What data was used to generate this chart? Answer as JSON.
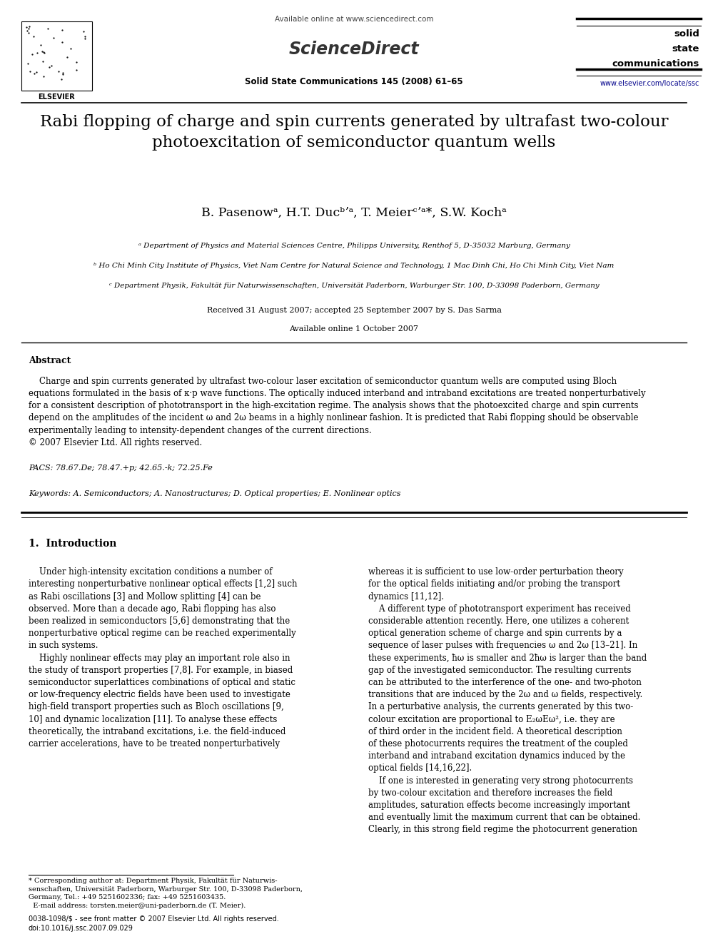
{
  "page_width": 9.92,
  "page_height": 13.23,
  "bg_color": "#ffffff",
  "header_available_online": "Available online at www.sciencedirect.com",
  "header_sciencedirect": "ScienceDirect",
  "header_journal_abbrev": "Solid State Communications 145 (2008) 61–65",
  "header_solid": "solid",
  "header_state": "state",
  "header_communications": "communications",
  "header_url": "www.elsevier.com/locate/ssc",
  "header_elsevier": "ELSEVIER",
  "title": "Rabi flopping of charge and spin currents generated by ultrafast two-colour\nphotoexcitation of semiconductor quantum wells",
  "authors": "B. Pasenowᵃ, H.T. Ducᵇʼᵃ, T. Meierᶜʼᵃ*, S.W. Kochᵃ",
  "affil_a": "ᵃ Department of Physics and Material Sciences Centre, Philipps University, Renthof 5, D-35032 Marburg, Germany",
  "affil_b": "ᵇ Ho Chi Minh City Institute of Physics, Viet Nam Centre for Natural Science and Technology, 1 Mac Dinh Chi, Ho Chi Minh City, Viet Nam",
  "affil_c": "ᶜ Department Physik, Fakultät für Naturwissenschaften, Universität Paderborn, Warburger Str. 100, D-33098 Paderborn, Germany",
  "received": "Received 31 August 2007; accepted 25 September 2007 by S. Das Sarma",
  "available_online2": "Available online 1 October 2007",
  "abstract_title": "Abstract",
  "pacs": "PACS: 78.67.De; 78.47.+p; 42.65.-k; 72.25.Fe",
  "keywords": "Keywords: A. Semiconductors; A. Nanostructures; D. Optical properties; E. Nonlinear optics",
  "section1_title": "1.  Introduction",
  "footer_left": "0038-1098/$ - see front matter © 2007 Elsevier Ltd. All rights reserved.\ndoi:10.1016/j.ssc.2007.09.029",
  "link_color": "#00008B",
  "text_color": "#000000"
}
